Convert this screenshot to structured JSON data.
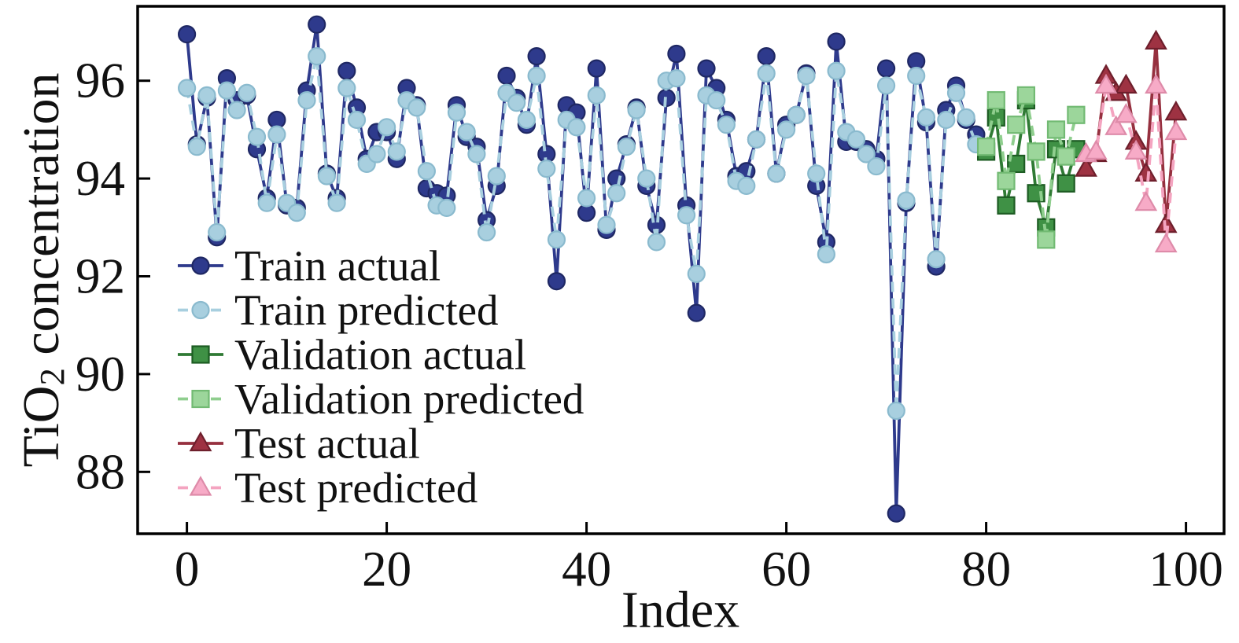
{
  "figure": {
    "background": "#ffffff",
    "frame_color": "#000000"
  },
  "chart_data": {
    "type": "line",
    "title": "",
    "xlabel": "Index",
    "ylabel": {
      "prefix": "TiO",
      "sub": "2",
      "suffix": " concentration"
    },
    "x_ticks": [
      0,
      20,
      40,
      60,
      80,
      100
    ],
    "y_ticks": [
      96,
      94,
      92,
      90,
      88
    ],
    "xlim": [
      -5,
      103
    ],
    "ylim": [
      86.7,
      97.5
    ],
    "grid": false,
    "legend_position": "inside-left-middle",
    "series": [
      {
        "name": "Train actual",
        "start_index": 0,
        "marker": "circle",
        "linestyle": "solid",
        "color": "#2E3A8C",
        "fill": "#2E3A8C",
        "edge": "#1F2864",
        "values": [
          96.95,
          94.7,
          95.65,
          92.8,
          96.05,
          95.6,
          95.7,
          94.6,
          93.6,
          95.2,
          93.45,
          93.4,
          95.8,
          97.15,
          94.1,
          93.6,
          96.2,
          95.45,
          94.4,
          94.95,
          94.95,
          94.4,
          95.85,
          95.5,
          93.8,
          93.7,
          93.65,
          95.5,
          94.85,
          94.65,
          93.15,
          93.85,
          96.1,
          95.65,
          95.1,
          96.5,
          94.5,
          91.9,
          95.5,
          95.35,
          93.3,
          96.25,
          92.95,
          94.0,
          94.7,
          95.45,
          93.85,
          93.05,
          95.65,
          96.55,
          93.45,
          91.25,
          96.25,
          95.85,
          95.2,
          94.05,
          94.15,
          94.8,
          96.5,
          94.1,
          95.1,
          95.3,
          96.15,
          93.85,
          92.7,
          96.8,
          94.75,
          94.75,
          94.6,
          94.4,
          96.25,
          87.15,
          93.5,
          96.4,
          95.15,
          92.2,
          95.4,
          95.9,
          95.2,
          94.9
        ]
      },
      {
        "name": "Train predicted",
        "start_index": 0,
        "marker": "circle",
        "linestyle": "dashed",
        "color": "#A8CFDF",
        "fill": "#A8CFDF",
        "edge": "#8ABACE",
        "values": [
          95.85,
          94.65,
          95.7,
          92.9,
          95.8,
          95.4,
          95.75,
          94.85,
          93.5,
          94.9,
          93.5,
          93.3,
          95.6,
          96.5,
          94.05,
          93.5,
          95.85,
          95.2,
          94.3,
          94.5,
          95.05,
          94.55,
          95.6,
          95.45,
          94.15,
          93.45,
          93.4,
          95.35,
          94.95,
          94.5,
          92.9,
          94.05,
          95.75,
          95.55,
          95.2,
          96.1,
          94.2,
          92.75,
          95.2,
          95.05,
          93.6,
          95.7,
          93.05,
          93.7,
          94.65,
          95.4,
          94.0,
          92.7,
          96.0,
          96.05,
          93.25,
          92.05,
          95.7,
          95.6,
          95.1,
          93.95,
          93.85,
          94.8,
          96.15,
          94.1,
          95.0,
          95.3,
          96.1,
          94.1,
          92.45,
          96.2,
          94.95,
          94.8,
          94.5,
          94.25,
          95.9,
          89.25,
          93.55,
          96.1,
          95.25,
          92.35,
          95.2,
          95.75,
          95.25,
          94.7
        ]
      },
      {
        "name": "Validation actual",
        "start_index": 80,
        "marker": "square",
        "linestyle": "solid",
        "color": "#2F7A34",
        "fill": "#3F9145",
        "edge": "#1D5C23",
        "values": [
          94.55,
          95.25,
          93.45,
          94.3,
          95.6,
          93.7,
          93.0,
          94.6,
          93.9,
          94.6
        ]
      },
      {
        "name": "Validation predicted",
        "start_index": 80,
        "marker": "square",
        "linestyle": "dashed",
        "color": "#8FCE8E",
        "fill": "#9CD69B",
        "edge": "#72BA73",
        "values": [
          94.65,
          95.6,
          93.95,
          95.1,
          95.7,
          94.55,
          92.75,
          95.0,
          94.45,
          95.3
        ]
      },
      {
        "name": "Test actual",
        "start_index": 90,
        "marker": "triangle",
        "linestyle": "solid",
        "color": "#96303F",
        "fill": "#9E3242",
        "edge": "#6E1F2C",
        "values": [
          94.2,
          94.5,
          96.1,
          95.75,
          95.9,
          94.75,
          94.1,
          96.8,
          93.05,
          95.35
        ]
      },
      {
        "name": "Test predicted",
        "start_index": 90,
        "marker": "triangle",
        "linestyle": "dashed",
        "color": "#F4A4C0",
        "fill": "#F7ABC7",
        "edge": "#DE8BA9",
        "values": [
          94.5,
          94.55,
          95.9,
          95.05,
          95.3,
          94.55,
          93.5,
          95.9,
          92.65,
          94.95
        ]
      }
    ]
  }
}
